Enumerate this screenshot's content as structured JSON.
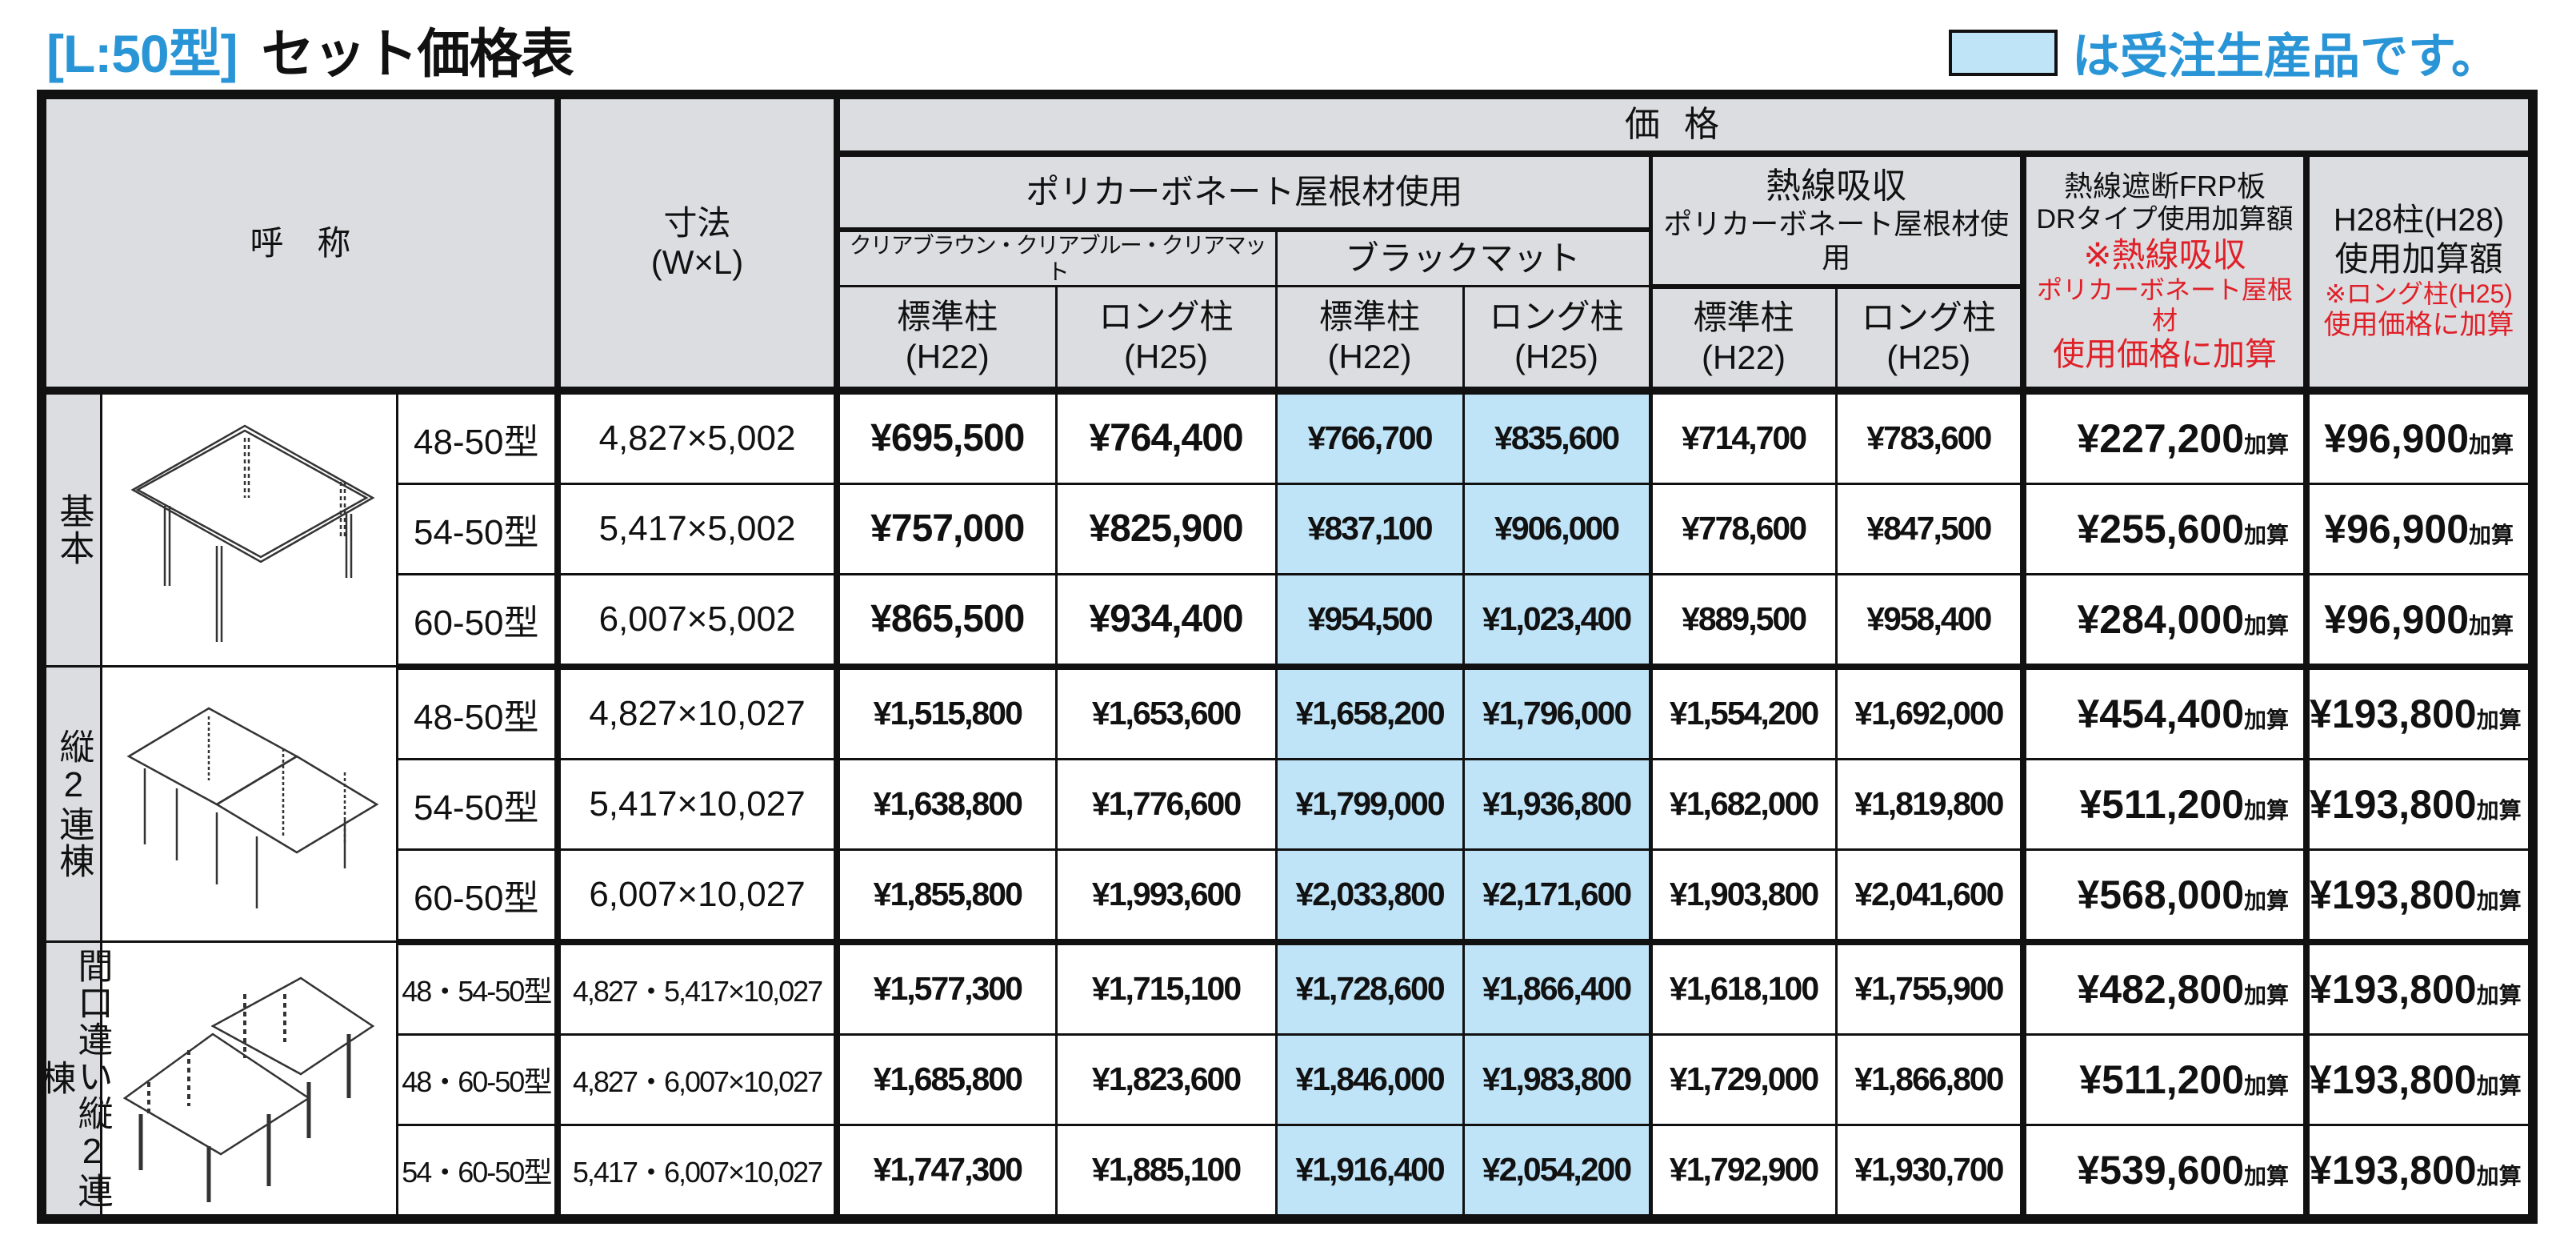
{
  "title": {
    "code": "[L:50型]",
    "text": "セット価格表"
  },
  "legend": {
    "text": "は受注生産品です。",
    "highlight_color": "#bfe3f7"
  },
  "accent_color": "#2a95d6",
  "note_color": "#e02028",
  "header": {
    "name": "呼　称",
    "size": "寸法",
    "size_unit": "(W×L)",
    "price": "価格",
    "polycarbonate": "ポリカーボネート屋根材使用",
    "clear_colors": "クリアブラウン・クリアブルー・クリアマット",
    "black_matte": "ブラックマット",
    "heat_absorb_1": "熱線吸収",
    "heat_absorb_2": "ポリカーボネート屋根材使用",
    "frp_1": "熱線遮断FRP板",
    "frp_2": "DRタイプ使用加算額",
    "frp_note_1": "※熱線吸収",
    "frp_note_2": "ポリカーボネート屋根材",
    "frp_note_3": "使用価格に加算",
    "h28_1": "H28柱(H28)",
    "h28_2": "使用加算額",
    "h28_note_1": "※ロング柱(H25)",
    "h28_note_2": "使用価格に加算",
    "std_post": "標準柱",
    "std_h": "(H22)",
    "long_post": "ロング柱",
    "long_h": "(H25)"
  },
  "add_suffix": "加算",
  "groups": [
    {
      "label": "基本",
      "illustration": "single-carport-icon",
      "rows": [
        {
          "model": "48-50型",
          "size": "4,827×5,002",
          "prices": [
            "¥695,500",
            "¥764,400",
            "¥766,700",
            "¥835,600",
            "¥714,700",
            "¥783,600"
          ],
          "frp": "¥227,200",
          "h28": "¥96,900"
        },
        {
          "model": "54-50型",
          "size": "5,417×5,002",
          "prices": [
            "¥757,000",
            "¥825,900",
            "¥837,100",
            "¥906,000",
            "¥778,600",
            "¥847,500"
          ],
          "frp": "¥255,600",
          "h28": "¥96,900"
        },
        {
          "model": "60-50型",
          "size": "6,007×5,002",
          "prices": [
            "¥865,500",
            "¥934,400",
            "¥954,500",
            "¥1,023,400",
            "¥889,500",
            "¥958,400"
          ],
          "frp": "¥284,000",
          "h28": "¥96,900"
        }
      ]
    },
    {
      "label": "縦2連棟",
      "illustration": "double-carport-icon",
      "rows": [
        {
          "model": "48-50型",
          "size": "4,827×10,027",
          "prices": [
            "¥1,515,800",
            "¥1,653,600",
            "¥1,658,200",
            "¥1,796,000",
            "¥1,554,200",
            "¥1,692,000"
          ],
          "frp": "¥454,400",
          "h28": "¥193,800"
        },
        {
          "model": "54-50型",
          "size": "5,417×10,027",
          "prices": [
            "¥1,638,800",
            "¥1,776,600",
            "¥1,799,000",
            "¥1,936,800",
            "¥1,682,000",
            "¥1,819,800"
          ],
          "frp": "¥511,200",
          "h28": "¥193,800"
        },
        {
          "model": "60-50型",
          "size": "6,007×10,027",
          "prices": [
            "¥1,855,800",
            "¥1,993,600",
            "¥2,033,800",
            "¥2,171,600",
            "¥1,903,800",
            "¥2,041,600"
          ],
          "frp": "¥568,000",
          "h28": "¥193,800"
        }
      ]
    },
    {
      "label": "間口違い縦2連棟",
      "illustration": "offset-double-carport-icon",
      "rows": [
        {
          "model": "48・54-50型",
          "size": "4,827・5,417×10,027",
          "prices": [
            "¥1,577,300",
            "¥1,715,100",
            "¥1,728,600",
            "¥1,866,400",
            "¥1,618,100",
            "¥1,755,900"
          ],
          "frp": "¥482,800",
          "h28": "¥193,800"
        },
        {
          "model": "48・60-50型",
          "size": "4,827・6,007×10,027",
          "prices": [
            "¥1,685,800",
            "¥1,823,600",
            "¥1,846,000",
            "¥1,983,800",
            "¥1,729,000",
            "¥1,866,800"
          ],
          "frp": "¥511,200",
          "h28": "¥193,800"
        },
        {
          "model": "54・60-50型",
          "size": "5,417・6,007×10,027",
          "prices": [
            "¥1,747,300",
            "¥1,885,100",
            "¥1,916,400",
            "¥2,054,200",
            "¥1,792,900",
            "¥1,930,700"
          ],
          "frp": "¥539,600",
          "h28": "¥193,800"
        }
      ]
    }
  ]
}
